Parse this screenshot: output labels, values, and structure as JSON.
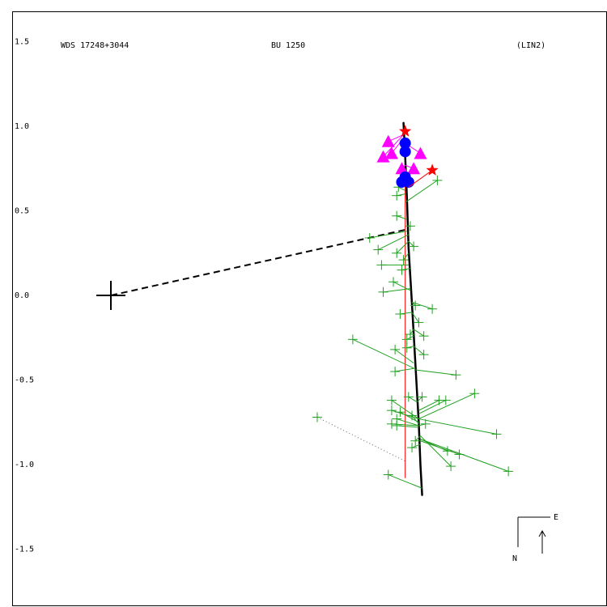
{
  "header": {
    "left": "WDS 17248+3044",
    "center": "BU 1250",
    "right": "(LIN2)"
  },
  "compass": {
    "east_label": "E",
    "north_label": "N"
  },
  "colors": {
    "background": "#ffffff",
    "frame": "#000000",
    "grid_text": "#000000",
    "orbit": "#000000",
    "periastron_line": "#000000",
    "observations_micrometric": "#20a020",
    "observations_interferometric": "#ff00ff",
    "observations_speckle": "#0000ff",
    "special_points": "#ff0000",
    "pivot_line": "#ff0000",
    "dotted_line": "#666666"
  },
  "chart_data": {
    "type": "scatter",
    "title": "",
    "xlabel": "",
    "ylabel": "",
    "ylim": [
      -1.84,
      1.68
    ],
    "yticks": [
      1.5,
      1.0,
      0.5,
      0.0,
      -0.5,
      -1.0,
      -1.5
    ],
    "ytick_labels": [
      "1.5",
      "1.0",
      "0.5",
      "0.0",
      "-0.5",
      "-1.0",
      "-1.5"
    ],
    "primary": {
      "x": 0.0,
      "y": 0.0
    },
    "orbit_line": [
      {
        "x": 1.73,
        "y": 1.02
      },
      {
        "x": 1.74,
        "y": 0.82
      },
      {
        "x": 1.75,
        "y": 0.58
      },
      {
        "x": 1.76,
        "y": 0.28
      },
      {
        "x": 1.78,
        "y": -0.05
      },
      {
        "x": 1.8,
        "y": -0.4
      },
      {
        "x": 1.82,
        "y": -0.75
      },
      {
        "x": 1.83,
        "y": -1.0
      },
      {
        "x": 1.84,
        "y": -1.18
      }
    ],
    "periastron_line": {
      "from": {
        "x": 0.0,
        "y": 0.0
      },
      "to": {
        "x": 1.75,
        "y": 0.39
      }
    },
    "pivot_line": {
      "from": {
        "x": 1.74,
        "y": 0.79
      },
      "to": {
        "x": 1.74,
        "y": -1.08
      }
    },
    "dotted_line": {
      "from": {
        "x": 1.22,
        "y": -0.72
      },
      "to": {
        "x": 1.74,
        "y": -0.98
      }
    },
    "series": [
      {
        "marker": "plus",
        "color": "#20a020",
        "points": [
          {
            "x": 1.7,
            "y": 0.64,
            "ox": 1.74,
            "oy": 0.62
          },
          {
            "x": 1.69,
            "y": 0.59,
            "ox": 1.74,
            "oy": 0.6
          },
          {
            "x": 1.93,
            "y": 0.68,
            "ox": 1.74,
            "oy": 0.55
          },
          {
            "x": 1.69,
            "y": 0.47,
            "ox": 1.75,
            "oy": 0.45
          },
          {
            "x": 1.77,
            "y": 0.41,
            "ox": 1.75,
            "oy": 0.41
          },
          {
            "x": 1.53,
            "y": 0.34,
            "ox": 1.75,
            "oy": 0.38
          },
          {
            "x": 1.58,
            "y": 0.27,
            "ox": 1.76,
            "oy": 0.36
          },
          {
            "x": 1.69,
            "y": 0.25,
            "ox": 1.76,
            "oy": 0.32
          },
          {
            "x": 1.79,
            "y": 0.29,
            "ox": 1.76,
            "oy": 0.32
          },
          {
            "x": 1.73,
            "y": 0.21,
            "ox": 1.76,
            "oy": 0.25
          },
          {
            "x": 1.6,
            "y": 0.18,
            "ox": 1.76,
            "oy": 0.18
          },
          {
            "x": 1.72,
            "y": 0.15,
            "ox": 1.77,
            "oy": 0.16
          },
          {
            "x": 1.67,
            "y": 0.08,
            "ox": 1.77,
            "oy": 0.03
          },
          {
            "x": 1.61,
            "y": 0.02,
            "ox": 1.77,
            "oy": 0.04
          },
          {
            "x": 1.8,
            "y": -0.06,
            "ox": 1.78,
            "oy": -0.04
          },
          {
            "x": 1.9,
            "y": -0.08,
            "ox": 1.78,
            "oy": -0.04
          },
          {
            "x": 1.71,
            "y": -0.11,
            "ox": 1.78,
            "oy": -0.1
          },
          {
            "x": 1.82,
            "y": -0.16,
            "ox": 1.78,
            "oy": -0.1
          },
          {
            "x": 1.77,
            "y": -0.23,
            "ox": 1.79,
            "oy": -0.2
          },
          {
            "x": 1.85,
            "y": -0.24,
            "ox": 1.79,
            "oy": -0.2
          },
          {
            "x": 1.75,
            "y": -0.26,
            "ox": 1.79,
            "oy": -0.24
          },
          {
            "x": 1.75,
            "y": -0.31,
            "ox": 1.79,
            "oy": -0.3
          },
          {
            "x": 1.85,
            "y": -0.35,
            "ox": 1.79,
            "oy": -0.3
          },
          {
            "x": 1.68,
            "y": -0.32,
            "ox": 1.79,
            "oy": -0.4
          },
          {
            "x": 1.43,
            "y": -0.26,
            "ox": 1.79,
            "oy": -0.43
          },
          {
            "x": 1.68,
            "y": -0.45,
            "ox": 1.8,
            "oy": -0.43
          },
          {
            "x": 2.04,
            "y": -0.47,
            "ox": 1.8,
            "oy": -0.44
          },
          {
            "x": 1.76,
            "y": -0.6,
            "ox": 1.81,
            "oy": -0.63
          },
          {
            "x": 1.84,
            "y": -0.6,
            "ox": 1.81,
            "oy": -0.63
          },
          {
            "x": 1.94,
            "y": -0.62,
            "ox": 1.82,
            "oy": -0.68
          },
          {
            "x": 1.98,
            "y": -0.62,
            "ox": 1.82,
            "oy": -0.7
          },
          {
            "x": 2.15,
            "y": -0.58,
            "ox": 1.82,
            "oy": -0.73
          },
          {
            "x": 1.66,
            "y": -0.62,
            "ox": 1.82,
            "oy": -0.73
          },
          {
            "x": 1.66,
            "y": -0.68,
            "ox": 1.82,
            "oy": -0.73
          },
          {
            "x": 1.71,
            "y": -0.69,
            "ox": 1.82,
            "oy": -0.75
          },
          {
            "x": 1.78,
            "y": -0.71,
            "ox": 1.82,
            "oy": -0.76
          },
          {
            "x": 1.69,
            "y": -0.73,
            "ox": 1.82,
            "oy": -0.77
          },
          {
            "x": 1.66,
            "y": -0.76,
            "ox": 1.82,
            "oy": -0.77
          },
          {
            "x": 1.69,
            "y": -0.77,
            "ox": 1.82,
            "oy": -0.78
          },
          {
            "x": 1.86,
            "y": -0.76,
            "ox": 1.82,
            "oy": -0.77
          },
          {
            "x": 2.28,
            "y": -0.82,
            "ox": 1.82,
            "oy": -0.73
          },
          {
            "x": 1.8,
            "y": -0.86,
            "ox": 1.83,
            "oy": -0.83
          },
          {
            "x": 1.78,
            "y": -0.9,
            "ox": 1.83,
            "oy": -0.88
          },
          {
            "x": 1.99,
            "y": -0.92,
            "ox": 1.83,
            "oy": -0.85
          },
          {
            "x": 2.06,
            "y": -0.94,
            "ox": 1.83,
            "oy": -0.86
          },
          {
            "x": 2.01,
            "y": -1.01,
            "ox": 1.83,
            "oy": -0.83
          },
          {
            "x": 2.35,
            "y": -1.04,
            "ox": 1.83,
            "oy": -0.85
          },
          {
            "x": 1.64,
            "y": -1.06,
            "ox": 1.84,
            "oy": -1.14
          },
          {
            "x": 1.22,
            "y": -0.72,
            "ox": 1.22,
            "oy": -0.72
          }
        ]
      },
      {
        "marker": "triangle",
        "color": "#ff00ff",
        "points": [
          {
            "x": 1.64,
            "y": 0.91,
            "ox": 1.73,
            "oy": 0.95
          },
          {
            "x": 1.61,
            "y": 0.82,
            "ox": 1.73,
            "oy": 0.95
          },
          {
            "x": 1.66,
            "y": 0.84,
            "ox": 1.73,
            "oy": 0.93
          },
          {
            "x": 1.83,
            "y": 0.84,
            "ox": 1.74,
            "oy": 0.9
          },
          {
            "x": 1.72,
            "y": 0.75,
            "ox": 1.74,
            "oy": 0.77
          },
          {
            "x": 1.79,
            "y": 0.75,
            "ox": 1.74,
            "oy": 0.77
          }
        ]
      },
      {
        "marker": "circle",
        "color": "#0000ff",
        "points": [
          {
            "x": 1.74,
            "y": 0.9
          },
          {
            "x": 1.74,
            "y": 0.85
          },
          {
            "x": 1.72,
            "y": 0.67
          },
          {
            "x": 1.76,
            "y": 0.67
          },
          {
            "x": 1.74,
            "y": 0.7
          }
        ]
      },
      {
        "marker": "star",
        "color": "#ff0000",
        "points": [
          {
            "x": 1.74,
            "y": 0.97
          },
          {
            "x": 1.9,
            "y": 0.74,
            "ox": 1.76,
            "oy": 0.64
          }
        ]
      }
    ]
  }
}
